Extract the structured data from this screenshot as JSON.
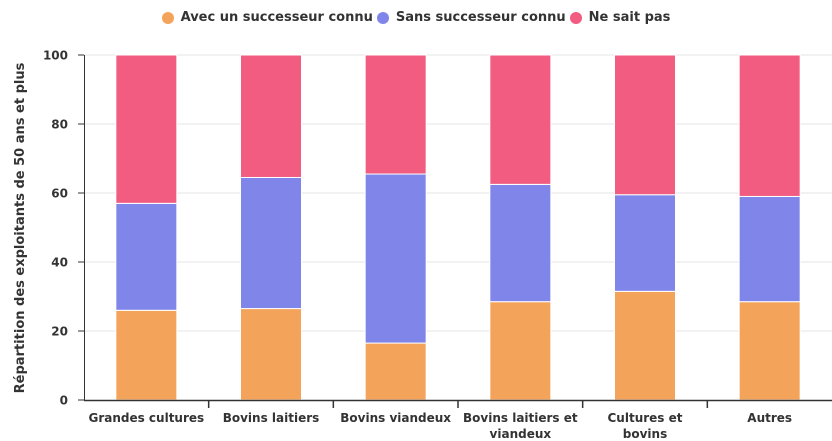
{
  "chart_data": {
    "type": "bar",
    "stacked": true,
    "categories": [
      "Grandes cultures",
      "Bovins laitiers",
      "Bovins viandeux",
      "Bovins laitiers et viandeux",
      "Cultures et bovins",
      "Autres"
    ],
    "category_lines": [
      [
        "Grandes cultures"
      ],
      [
        "Bovins laitiers"
      ],
      [
        "Bovins viandeux"
      ],
      [
        "Bovins laitiers et",
        "viandeux"
      ],
      [
        "Cultures et",
        "bovins"
      ],
      [
        "Autres"
      ]
    ],
    "series": [
      {
        "name": "Avec un successeur connu",
        "color": "#f4a35a",
        "values": [
          26,
          26.5,
          16.5,
          28.5,
          31.5,
          28.5
        ]
      },
      {
        "name": "Sans successeur connu",
        "color": "#8085e9",
        "values": [
          31,
          38,
          49,
          34,
          28,
          30.5
        ]
      },
      {
        "name": "Ne sait pas",
        "color": "#f15c80",
        "values": [
          43,
          35.5,
          34.5,
          37.5,
          40.5,
          41
        ]
      }
    ],
    "ylabel": "Répartition des exploitants de 50 ans et plus",
    "ylim": [
      0,
      100
    ],
    "yticks": [
      0,
      20,
      40,
      60,
      80,
      100
    ],
    "legend_position": "top",
    "grid": true
  }
}
